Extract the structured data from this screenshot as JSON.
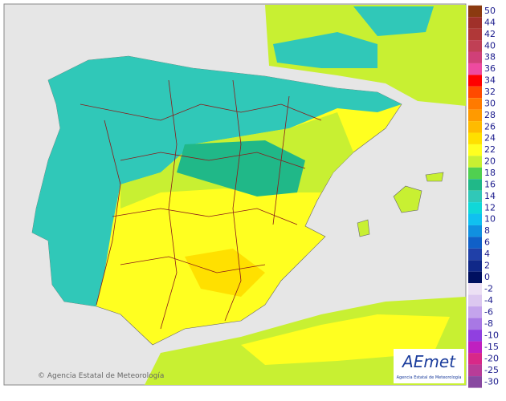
{
  "legend": [
    {
      "label": 50,
      "color": "#8b3a10"
    },
    {
      "label": 44,
      "color": "#a0302a"
    },
    {
      "label": 42,
      "color": "#b03838"
    },
    {
      "label": 40,
      "color": "#c04055"
    },
    {
      "label": 38,
      "color": "#d04078"
    },
    {
      "label": 36,
      "color": "#ee4aa0"
    },
    {
      "label": 34,
      "color": "#ff0000"
    },
    {
      "label": 32,
      "color": "#ff4a00"
    },
    {
      "label": 30,
      "color": "#ff7a00"
    },
    {
      "label": 28,
      "color": "#ff9a00"
    },
    {
      "label": 26,
      "color": "#ffbb00"
    },
    {
      "label": 24,
      "color": "#ffe000"
    },
    {
      "label": 22,
      "color": "#ffff20"
    },
    {
      "label": 20,
      "color": "#c8f032"
    },
    {
      "label": 18,
      "color": "#50d050"
    },
    {
      "label": 16,
      "color": "#20b888"
    },
    {
      "label": 14,
      "color": "#30c8b8"
    },
    {
      "label": 12,
      "color": "#10d8d8"
    },
    {
      "label": 10,
      "color": "#10c0f0"
    },
    {
      "label": 8,
      "color": "#1090e0"
    },
    {
      "label": 6,
      "color": "#1060c8"
    },
    {
      "label": 4,
      "color": "#2040a8"
    },
    {
      "label": 2,
      "color": "#102888"
    },
    {
      "label": 0,
      "color": "#001060"
    },
    {
      "label": -2,
      "color": "#ece0f4"
    },
    {
      "label": -4,
      "color": "#dcc8f0"
    },
    {
      "label": -6,
      "color": "#c4a4ec"
    },
    {
      "label": -8,
      "color": "#a878e4"
    },
    {
      "label": -10,
      "color": "#9040e0"
    },
    {
      "label": -15,
      "color": "#c020c0"
    },
    {
      "label": -20,
      "color": "#d82888"
    },
    {
      "label": -25,
      "color": "#b83c98"
    },
    {
      "label": -30,
      "color": "#8848a0"
    }
  ],
  "copyright": "© Agencia Estatal de Meteorología",
  "logo": {
    "brand": "AEmet",
    "agency": "Agencia Estatal de Meteorología"
  }
}
